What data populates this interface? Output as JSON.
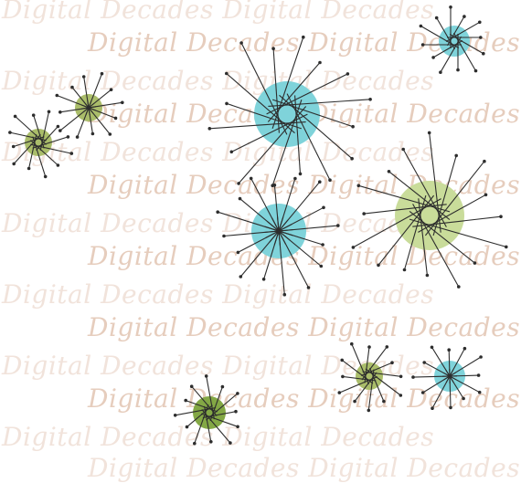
{
  "watermark": {
    "text": "Digital Decades Digital Decades",
    "light_color": "#f1e3db",
    "dark_color": "#e6cdbd"
  },
  "palette": {
    "teal": "#7fd3da",
    "lime": "#c9dc9a",
    "olive": "#aabd6a",
    "green": "#83a845",
    "line": "#2d2d2d",
    "background": "#ffffff"
  },
  "starbursts": [
    {
      "name": "starburst-teal-top-right",
      "color": "teal"
    },
    {
      "name": "starburst-lime-left-upper",
      "color": "olive"
    },
    {
      "name": "starburst-lime-left-lower",
      "color": "olive"
    },
    {
      "name": "starburst-teal-large",
      "color": "teal"
    },
    {
      "name": "starburst-teal-medium",
      "color": "teal"
    },
    {
      "name": "starburst-lime-large",
      "color": "lime"
    },
    {
      "name": "starburst-lime-small-bottom",
      "color": "olive"
    },
    {
      "name": "starburst-teal-small-bottom",
      "color": "teal"
    },
    {
      "name": "starburst-green-bottom-left",
      "color": "green"
    }
  ]
}
